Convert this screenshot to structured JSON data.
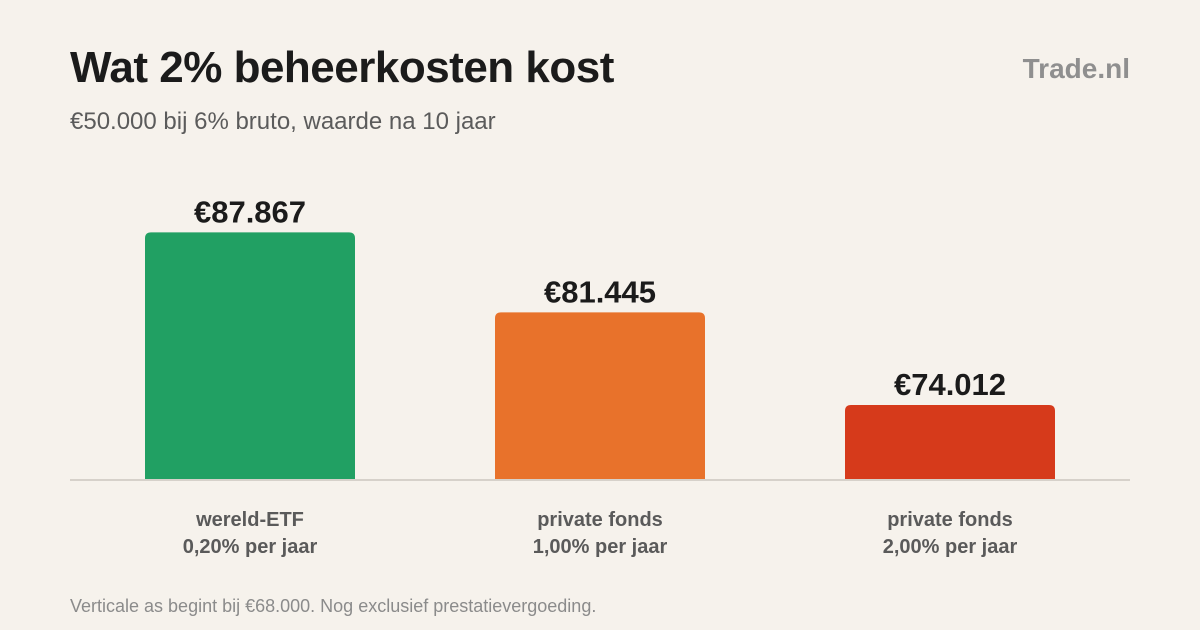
{
  "header": {
    "title": "Wat 2% beheerkosten kost",
    "subtitle": "€50.000 bij 6% bruto, waarde na 10 jaar",
    "brand": "Trade.nl"
  },
  "footnote": "Verticale as begint bij €68.000. Nog exclusief prestatievergoeding.",
  "chart_data": {
    "type": "bar",
    "title": "Wat 2% beheerkosten kost",
    "subtitle": "€50.000 bij 6% bruto, waarde na 10 jaar",
    "xlabel": "",
    "ylabel": "",
    "ylim": [
      68000,
      89500
    ],
    "grid": false,
    "legend": "none",
    "categories": [
      [
        "wereld-ETF",
        "0,20% per jaar"
      ],
      [
        "private fonds",
        "1,00% per jaar"
      ],
      [
        "private fonds",
        "2,00% per jaar"
      ]
    ],
    "values": [
      87867,
      81445,
      74012
    ],
    "value_labels": [
      "€87.867",
      "€81.445",
      "€74.012"
    ],
    "colors": [
      "#21a063",
      "#e8722b",
      "#d63a1b"
    ]
  }
}
